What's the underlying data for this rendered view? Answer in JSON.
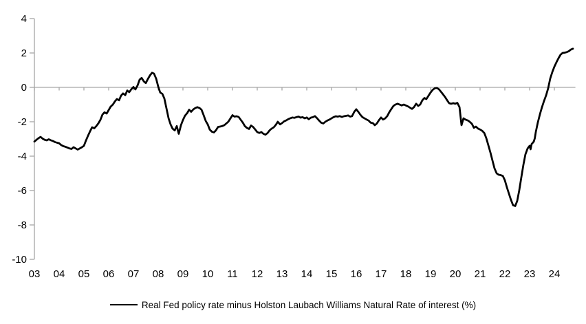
{
  "chart_data": {
    "type": "line",
    "title": "",
    "xlabel": "",
    "ylabel": "",
    "ylim": [
      -10,
      4
    ],
    "xlim": [
      2003.0,
      2024.85
    ],
    "y_ticks": [
      4,
      2,
      0,
      -2,
      -4,
      -6,
      -8,
      -10
    ],
    "x_tick_labels": [
      "03",
      "04",
      "05",
      "06",
      "07",
      "08",
      "09",
      "10",
      "11",
      "12",
      "13",
      "14",
      "15",
      "16",
      "17",
      "18",
      "19",
      "20",
      "21",
      "22",
      "23",
      "24"
    ],
    "grid": "zero-line-only",
    "legend_position": "bottom-center",
    "series": [
      {
        "name": "Real Fed policy rate minus Holston Laubach Williams Natural Rate of interest (%)",
        "color": "#000000",
        "points": [
          [
            2003.0,
            -3.15
          ],
          [
            2003.08,
            -3.05
          ],
          [
            2003.17,
            -2.95
          ],
          [
            2003.25,
            -2.88
          ],
          [
            2003.33,
            -2.98
          ],
          [
            2003.42,
            -3.05
          ],
          [
            2003.5,
            -3.08
          ],
          [
            2003.58,
            -3.02
          ],
          [
            2003.67,
            -3.08
          ],
          [
            2003.75,
            -3.12
          ],
          [
            2003.83,
            -3.18
          ],
          [
            2003.92,
            -3.22
          ],
          [
            2004.0,
            -3.25
          ],
          [
            2004.08,
            -3.35
          ],
          [
            2004.17,
            -3.42
          ],
          [
            2004.25,
            -3.45
          ],
          [
            2004.33,
            -3.5
          ],
          [
            2004.42,
            -3.55
          ],
          [
            2004.5,
            -3.58
          ],
          [
            2004.58,
            -3.48
          ],
          [
            2004.67,
            -3.55
          ],
          [
            2004.75,
            -3.62
          ],
          [
            2004.83,
            -3.55
          ],
          [
            2004.92,
            -3.48
          ],
          [
            2005.0,
            -3.4
          ],
          [
            2005.08,
            -3.1
          ],
          [
            2005.17,
            -2.8
          ],
          [
            2005.25,
            -2.55
          ],
          [
            2005.33,
            -2.32
          ],
          [
            2005.42,
            -2.38
          ],
          [
            2005.5,
            -2.25
          ],
          [
            2005.58,
            -2.1
          ],
          [
            2005.67,
            -1.88
          ],
          [
            2005.75,
            -1.58
          ],
          [
            2005.83,
            -1.45
          ],
          [
            2005.92,
            -1.52
          ],
          [
            2006.0,
            -1.32
          ],
          [
            2006.08,
            -1.12
          ],
          [
            2006.17,
            -1.0
          ],
          [
            2006.25,
            -0.82
          ],
          [
            2006.33,
            -0.68
          ],
          [
            2006.42,
            -0.75
          ],
          [
            2006.5,
            -0.48
          ],
          [
            2006.58,
            -0.35
          ],
          [
            2006.67,
            -0.45
          ],
          [
            2006.75,
            -0.18
          ],
          [
            2006.83,
            -0.28
          ],
          [
            2006.92,
            -0.1
          ],
          [
            2007.0,
            0.02
          ],
          [
            2007.08,
            -0.12
          ],
          [
            2007.17,
            0.12
          ],
          [
            2007.25,
            0.45
          ],
          [
            2007.33,
            0.55
          ],
          [
            2007.42,
            0.35
          ],
          [
            2007.5,
            0.25
          ],
          [
            2007.58,
            0.48
          ],
          [
            2007.67,
            0.7
          ],
          [
            2007.75,
            0.85
          ],
          [
            2007.83,
            0.8
          ],
          [
            2007.92,
            0.5
          ],
          [
            2008.0,
            0.05
          ],
          [
            2008.08,
            -0.3
          ],
          [
            2008.17,
            -0.38
          ],
          [
            2008.25,
            -0.65
          ],
          [
            2008.33,
            -1.2
          ],
          [
            2008.42,
            -1.8
          ],
          [
            2008.5,
            -2.15
          ],
          [
            2008.58,
            -2.4
          ],
          [
            2008.67,
            -2.5
          ],
          [
            2008.75,
            -2.25
          ],
          [
            2008.83,
            -2.7
          ],
          [
            2008.92,
            -2.2
          ],
          [
            2009.0,
            -1.9
          ],
          [
            2009.08,
            -1.65
          ],
          [
            2009.17,
            -1.5
          ],
          [
            2009.25,
            -1.3
          ],
          [
            2009.33,
            -1.42
          ],
          [
            2009.42,
            -1.28
          ],
          [
            2009.5,
            -1.2
          ],
          [
            2009.58,
            -1.15
          ],
          [
            2009.67,
            -1.2
          ],
          [
            2009.75,
            -1.3
          ],
          [
            2009.83,
            -1.6
          ],
          [
            2009.92,
            -1.95
          ],
          [
            2010.0,
            -2.15
          ],
          [
            2010.08,
            -2.45
          ],
          [
            2010.17,
            -2.58
          ],
          [
            2010.25,
            -2.62
          ],
          [
            2010.33,
            -2.5
          ],
          [
            2010.42,
            -2.3
          ],
          [
            2010.5,
            -2.28
          ],
          [
            2010.58,
            -2.25
          ],
          [
            2010.67,
            -2.2
          ],
          [
            2010.75,
            -2.1
          ],
          [
            2010.83,
            -2.0
          ],
          [
            2010.92,
            -1.8
          ],
          [
            2011.0,
            -1.62
          ],
          [
            2011.08,
            -1.7
          ],
          [
            2011.17,
            -1.68
          ],
          [
            2011.25,
            -1.72
          ],
          [
            2011.33,
            -1.88
          ],
          [
            2011.42,
            -2.05
          ],
          [
            2011.5,
            -2.25
          ],
          [
            2011.58,
            -2.35
          ],
          [
            2011.67,
            -2.42
          ],
          [
            2011.75,
            -2.22
          ],
          [
            2011.83,
            -2.3
          ],
          [
            2011.92,
            -2.45
          ],
          [
            2012.0,
            -2.6
          ],
          [
            2012.08,
            -2.65
          ],
          [
            2012.17,
            -2.6
          ],
          [
            2012.25,
            -2.7
          ],
          [
            2012.33,
            -2.75
          ],
          [
            2012.42,
            -2.65
          ],
          [
            2012.5,
            -2.5
          ],
          [
            2012.58,
            -2.4
          ],
          [
            2012.67,
            -2.32
          ],
          [
            2012.75,
            -2.18
          ],
          [
            2012.83,
            -2.0
          ],
          [
            2012.92,
            -2.15
          ],
          [
            2013.0,
            -2.08
          ],
          [
            2013.08,
            -1.98
          ],
          [
            2013.17,
            -1.92
          ],
          [
            2013.25,
            -1.85
          ],
          [
            2013.33,
            -1.8
          ],
          [
            2013.42,
            -1.75
          ],
          [
            2013.5,
            -1.77
          ],
          [
            2013.58,
            -1.73
          ],
          [
            2013.67,
            -1.7
          ],
          [
            2013.75,
            -1.76
          ],
          [
            2013.83,
            -1.73
          ],
          [
            2013.92,
            -1.8
          ],
          [
            2014.0,
            -1.75
          ],
          [
            2014.08,
            -1.85
          ],
          [
            2014.17,
            -1.76
          ],
          [
            2014.25,
            -1.73
          ],
          [
            2014.33,
            -1.67
          ],
          [
            2014.42,
            -1.8
          ],
          [
            2014.5,
            -1.93
          ],
          [
            2014.58,
            -2.05
          ],
          [
            2014.67,
            -2.1
          ],
          [
            2014.75,
            -2.0
          ],
          [
            2014.83,
            -1.93
          ],
          [
            2014.92,
            -1.87
          ],
          [
            2015.0,
            -1.8
          ],
          [
            2015.08,
            -1.73
          ],
          [
            2015.17,
            -1.68
          ],
          [
            2015.25,
            -1.7
          ],
          [
            2015.33,
            -1.67
          ],
          [
            2015.42,
            -1.72
          ],
          [
            2015.5,
            -1.68
          ],
          [
            2015.58,
            -1.66
          ],
          [
            2015.67,
            -1.63
          ],
          [
            2015.75,
            -1.7
          ],
          [
            2015.83,
            -1.67
          ],
          [
            2015.92,
            -1.42
          ],
          [
            2016.0,
            -1.27
          ],
          [
            2016.08,
            -1.42
          ],
          [
            2016.17,
            -1.6
          ],
          [
            2016.25,
            -1.73
          ],
          [
            2016.33,
            -1.8
          ],
          [
            2016.42,
            -1.87
          ],
          [
            2016.5,
            -1.93
          ],
          [
            2016.58,
            -2.05
          ],
          [
            2016.67,
            -2.08
          ],
          [
            2016.75,
            -2.2
          ],
          [
            2016.83,
            -2.1
          ],
          [
            2016.92,
            -1.9
          ],
          [
            2017.0,
            -1.75
          ],
          [
            2017.08,
            -1.87
          ],
          [
            2017.17,
            -1.8
          ],
          [
            2017.25,
            -1.67
          ],
          [
            2017.33,
            -1.45
          ],
          [
            2017.42,
            -1.25
          ],
          [
            2017.5,
            -1.08
          ],
          [
            2017.58,
            -1.0
          ],
          [
            2017.67,
            -0.95
          ],
          [
            2017.75,
            -1.0
          ],
          [
            2017.83,
            -1.05
          ],
          [
            2017.92,
            -1.0
          ],
          [
            2018.0,
            -1.05
          ],
          [
            2018.08,
            -1.1
          ],
          [
            2018.17,
            -1.18
          ],
          [
            2018.25,
            -1.25
          ],
          [
            2018.33,
            -1.15
          ],
          [
            2018.42,
            -0.95
          ],
          [
            2018.5,
            -1.08
          ],
          [
            2018.58,
            -1.0
          ],
          [
            2018.67,
            -0.75
          ],
          [
            2018.75,
            -0.62
          ],
          [
            2018.83,
            -0.68
          ],
          [
            2018.92,
            -0.48
          ],
          [
            2019.0,
            -0.3
          ],
          [
            2019.08,
            -0.15
          ],
          [
            2019.17,
            -0.05
          ],
          [
            2019.25,
            -0.03
          ],
          [
            2019.33,
            -0.1
          ],
          [
            2019.42,
            -0.25
          ],
          [
            2019.5,
            -0.4
          ],
          [
            2019.58,
            -0.55
          ],
          [
            2019.67,
            -0.75
          ],
          [
            2019.75,
            -0.92
          ],
          [
            2019.83,
            -0.95
          ],
          [
            2019.92,
            -0.92
          ],
          [
            2020.0,
            -0.95
          ],
          [
            2020.08,
            -0.9
          ],
          [
            2020.17,
            -1.15
          ],
          [
            2020.25,
            -2.2
          ],
          [
            2020.33,
            -1.8
          ],
          [
            2020.42,
            -1.88
          ],
          [
            2020.5,
            -1.92
          ],
          [
            2020.58,
            -2.0
          ],
          [
            2020.67,
            -2.12
          ],
          [
            2020.75,
            -2.35
          ],
          [
            2020.83,
            -2.28
          ],
          [
            2020.92,
            -2.4
          ],
          [
            2021.0,
            -2.45
          ],
          [
            2021.08,
            -2.52
          ],
          [
            2021.17,
            -2.65
          ],
          [
            2021.25,
            -2.95
          ],
          [
            2021.33,
            -3.35
          ],
          [
            2021.42,
            -3.8
          ],
          [
            2021.5,
            -4.25
          ],
          [
            2021.58,
            -4.7
          ],
          [
            2021.67,
            -5.0
          ],
          [
            2021.75,
            -5.08
          ],
          [
            2021.83,
            -5.1
          ],
          [
            2021.92,
            -5.15
          ],
          [
            2022.0,
            -5.4
          ],
          [
            2022.08,
            -5.8
          ],
          [
            2022.17,
            -6.2
          ],
          [
            2022.25,
            -6.55
          ],
          [
            2022.33,
            -6.85
          ],
          [
            2022.42,
            -6.9
          ],
          [
            2022.5,
            -6.6
          ],
          [
            2022.58,
            -6.0
          ],
          [
            2022.67,
            -5.2
          ],
          [
            2022.75,
            -4.5
          ],
          [
            2022.83,
            -3.9
          ],
          [
            2022.92,
            -3.55
          ],
          [
            2023.0,
            -3.4
          ],
          [
            2023.04,
            -3.6
          ],
          [
            2023.08,
            -3.3
          ],
          [
            2023.17,
            -3.15
          ],
          [
            2023.21,
            -2.95
          ],
          [
            2023.25,
            -2.6
          ],
          [
            2023.33,
            -2.05
          ],
          [
            2023.42,
            -1.55
          ],
          [
            2023.5,
            -1.15
          ],
          [
            2023.58,
            -0.8
          ],
          [
            2023.67,
            -0.45
          ],
          [
            2023.75,
            -0.05
          ],
          [
            2023.83,
            0.5
          ],
          [
            2023.92,
            0.9
          ],
          [
            2024.0,
            1.2
          ],
          [
            2024.08,
            1.45
          ],
          [
            2024.17,
            1.7
          ],
          [
            2024.25,
            1.9
          ],
          [
            2024.33,
            2.0
          ],
          [
            2024.42,
            2.02
          ],
          [
            2024.5,
            2.05
          ],
          [
            2024.58,
            2.1
          ],
          [
            2024.67,
            2.2
          ],
          [
            2024.75,
            2.25
          ]
        ]
      }
    ]
  },
  "colors": {
    "line": "#000000",
    "axis": "#a6a6a6",
    "text": "#000000",
    "background": "#ffffff"
  }
}
